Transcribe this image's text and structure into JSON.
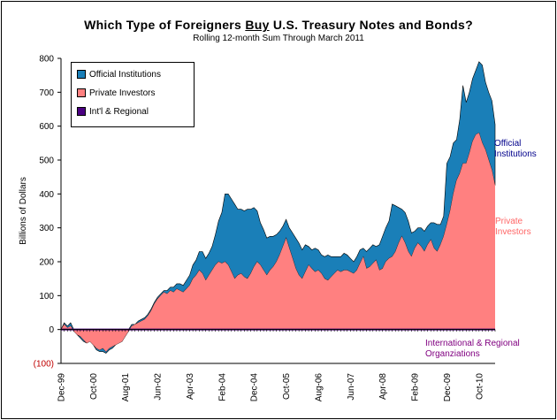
{
  "chart_data": {
    "type": "area",
    "title_parts": [
      "Which Type of Foreigners ",
      "Buy",
      " U.S. Treasury Notes and Bonds?"
    ],
    "subtitle": "Rolling 12-month Sum Through March 2011",
    "ylabel": "Billions of Dollars",
    "ylim": [
      -100,
      800
    ],
    "yticks": [
      -100,
      0,
      100,
      200,
      300,
      400,
      500,
      600,
      700,
      800
    ],
    "ytick_labels": [
      "(100)",
      "0",
      "100",
      "200",
      "300",
      "400",
      "500",
      "600",
      "700",
      "800"
    ],
    "xlim": [
      "1999-12",
      "2011-03"
    ],
    "xticks": [
      "Dec-99",
      "Oct-00",
      "Aug-01",
      "Jun-02",
      "Apr-03",
      "Feb-04",
      "Dec-04",
      "Oct-05",
      "Aug-06",
      "Jun-07",
      "Apr-08",
      "Feb-09",
      "Dec-09",
      "Oct-10"
    ],
    "legend": {
      "position": "top-left",
      "entries": [
        {
          "label": "Official Institutions",
          "color": "#1a7fb8"
        },
        {
          "label": "Private Investors",
          "color": "#ff8080"
        },
        {
          "label": "Int'l & Regional",
          "color": "#4b0082"
        }
      ]
    },
    "series": [
      {
        "name": "Private Investors",
        "color": "#ff8080",
        "points": [
          [
            "1999-12",
            0
          ],
          [
            "2000-01",
            15
          ],
          [
            "2000-02",
            5
          ],
          [
            "2000-03",
            10
          ],
          [
            "2000-04",
            -5
          ],
          [
            "2000-05",
            -15
          ],
          [
            "2000-06",
            -20
          ],
          [
            "2000-07",
            -30
          ],
          [
            "2000-08",
            -40
          ],
          [
            "2000-09",
            -35
          ],
          [
            "2000-10",
            -45
          ],
          [
            "2000-11",
            -55
          ],
          [
            "2000-12",
            -60
          ],
          [
            "2001-01",
            -55
          ],
          [
            "2001-02",
            -65
          ],
          [
            "2001-03",
            -55
          ],
          [
            "2001-04",
            -50
          ],
          [
            "2001-05",
            -45
          ],
          [
            "2001-06",
            -40
          ],
          [
            "2001-07",
            -35
          ],
          [
            "2001-08",
            -20
          ],
          [
            "2001-09",
            -5
          ],
          [
            "2001-10",
            10
          ],
          [
            "2001-11",
            15
          ],
          [
            "2001-12",
            20
          ],
          [
            "2002-01",
            25
          ],
          [
            "2002-02",
            30
          ],
          [
            "2002-03",
            40
          ],
          [
            "2002-04",
            55
          ],
          [
            "2002-05",
            75
          ],
          [
            "2002-06",
            90
          ],
          [
            "2002-07",
            100
          ],
          [
            "2002-08",
            110
          ],
          [
            "2002-09",
            105
          ],
          [
            "2002-10",
            115
          ],
          [
            "2002-11",
            110
          ],
          [
            "2002-12",
            120
          ],
          [
            "2003-01",
            115
          ],
          [
            "2003-02",
            110
          ],
          [
            "2003-03",
            120
          ],
          [
            "2003-04",
            130
          ],
          [
            "2003-05",
            150
          ],
          [
            "2003-06",
            160
          ],
          [
            "2003-07",
            175
          ],
          [
            "2003-08",
            165
          ],
          [
            "2003-09",
            145
          ],
          [
            "2003-10",
            160
          ],
          [
            "2003-11",
            175
          ],
          [
            "2003-12",
            190
          ],
          [
            "2004-01",
            200
          ],
          [
            "2004-02",
            195
          ],
          [
            "2004-03",
            200
          ],
          [
            "2004-04",
            190
          ],
          [
            "2004-05",
            170
          ],
          [
            "2004-06",
            150
          ],
          [
            "2004-07",
            160
          ],
          [
            "2004-08",
            165
          ],
          [
            "2004-09",
            155
          ],
          [
            "2004-10",
            150
          ],
          [
            "2004-11",
            165
          ],
          [
            "2004-12",
            185
          ],
          [
            "2005-01",
            200
          ],
          [
            "2005-02",
            190
          ],
          [
            "2005-03",
            175
          ],
          [
            "2005-04",
            160
          ],
          [
            "2005-05",
            175
          ],
          [
            "2005-06",
            185
          ],
          [
            "2005-07",
            200
          ],
          [
            "2005-08",
            220
          ],
          [
            "2005-09",
            245
          ],
          [
            "2005-10",
            270
          ],
          [
            "2005-11",
            240
          ],
          [
            "2005-12",
            210
          ],
          [
            "2006-01",
            180
          ],
          [
            "2006-02",
            160
          ],
          [
            "2006-03",
            150
          ],
          [
            "2006-04",
            170
          ],
          [
            "2006-05",
            190
          ],
          [
            "2006-06",
            180
          ],
          [
            "2006-07",
            170
          ],
          [
            "2006-08",
            175
          ],
          [
            "2006-09",
            165
          ],
          [
            "2006-10",
            150
          ],
          [
            "2006-11",
            145
          ],
          [
            "2006-12",
            155
          ],
          [
            "2007-01",
            165
          ],
          [
            "2007-02",
            175
          ],
          [
            "2007-03",
            170
          ],
          [
            "2007-04",
            175
          ],
          [
            "2007-05",
            175
          ],
          [
            "2007-06",
            170
          ],
          [
            "2007-07",
            165
          ],
          [
            "2007-08",
            175
          ],
          [
            "2007-09",
            195
          ],
          [
            "2007-10",
            215
          ],
          [
            "2007-11",
            180
          ],
          [
            "2007-12",
            185
          ],
          [
            "2008-01",
            195
          ],
          [
            "2008-02",
            205
          ],
          [
            "2008-03",
            175
          ],
          [
            "2008-04",
            180
          ],
          [
            "2008-05",
            200
          ],
          [
            "2008-06",
            210
          ],
          [
            "2008-07",
            215
          ],
          [
            "2008-08",
            230
          ],
          [
            "2008-09",
            255
          ],
          [
            "2008-10",
            275
          ],
          [
            "2008-11",
            255
          ],
          [
            "2008-12",
            230
          ],
          [
            "2009-01",
            215
          ],
          [
            "2009-02",
            240
          ],
          [
            "2009-03",
            255
          ],
          [
            "2009-04",
            245
          ],
          [
            "2009-05",
            230
          ],
          [
            "2009-06",
            250
          ],
          [
            "2009-07",
            265
          ],
          [
            "2009-08",
            240
          ],
          [
            "2009-09",
            230
          ],
          [
            "2009-10",
            250
          ],
          [
            "2009-11",
            275
          ],
          [
            "2009-12",
            310
          ],
          [
            "2010-01",
            350
          ],
          [
            "2010-02",
            400
          ],
          [
            "2010-03",
            440
          ],
          [
            "2010-04",
            460
          ],
          [
            "2010-05",
            490
          ],
          [
            "2010-06",
            490
          ],
          [
            "2010-07",
            520
          ],
          [
            "2010-08",
            555
          ],
          [
            "2010-09",
            575
          ],
          [
            "2010-10",
            580
          ],
          [
            "2010-11",
            550
          ],
          [
            "2010-12",
            530
          ],
          [
            "2011-01",
            500
          ],
          [
            "2011-02",
            470
          ],
          [
            "2011-03",
            425
          ]
        ]
      },
      {
        "name": "Official Institutions",
        "color": "#1a7fb8",
        "points": [
          [
            "1999-12",
            0
          ],
          [
            "2000-01",
            5
          ],
          [
            "2000-02",
            5
          ],
          [
            "2000-03",
            10
          ],
          [
            "2000-04",
            5
          ],
          [
            "2000-05",
            0
          ],
          [
            "2000-06",
            -5
          ],
          [
            "2000-07",
            -5
          ],
          [
            "2000-08",
            0
          ],
          [
            "2000-09",
            0
          ],
          [
            "2000-10",
            0
          ],
          [
            "2000-11",
            -5
          ],
          [
            "2000-12",
            -5
          ],
          [
            "2001-01",
            -10
          ],
          [
            "2001-02",
            -5
          ],
          [
            "2001-03",
            -5
          ],
          [
            "2001-04",
            -5
          ],
          [
            "2001-05",
            0
          ],
          [
            "2001-06",
            5
          ],
          [
            "2001-07",
            0
          ],
          [
            "2001-08",
            0
          ],
          [
            "2001-09",
            5
          ],
          [
            "2001-10",
            5
          ],
          [
            "2001-11",
            0
          ],
          [
            "2001-12",
            5
          ],
          [
            "2002-01",
            5
          ],
          [
            "2002-02",
            5
          ],
          [
            "2002-03",
            5
          ],
          [
            "2002-04",
            5
          ],
          [
            "2002-05",
            5
          ],
          [
            "2002-06",
            5
          ],
          [
            "2002-07",
            5
          ],
          [
            "2002-08",
            5
          ],
          [
            "2002-09",
            10
          ],
          [
            "2002-10",
            10
          ],
          [
            "2002-11",
            15
          ],
          [
            "2002-12",
            15
          ],
          [
            "2003-01",
            20
          ],
          [
            "2003-02",
            20
          ],
          [
            "2003-03",
            25
          ],
          [
            "2003-04",
            30
          ],
          [
            "2003-05",
            40
          ],
          [
            "2003-06",
            45
          ],
          [
            "2003-07",
            55
          ],
          [
            "2003-08",
            65
          ],
          [
            "2003-09",
            65
          ],
          [
            "2003-10",
            65
          ],
          [
            "2003-11",
            70
          ],
          [
            "2003-12",
            90
          ],
          [
            "2004-01",
            120
          ],
          [
            "2004-02",
            150
          ],
          [
            "2004-03",
            200
          ],
          [
            "2004-04",
            210
          ],
          [
            "2004-05",
            215
          ],
          [
            "2004-06",
            220
          ],
          [
            "2004-07",
            195
          ],
          [
            "2004-08",
            190
          ],
          [
            "2004-09",
            195
          ],
          [
            "2004-10",
            205
          ],
          [
            "2004-11",
            190
          ],
          [
            "2004-12",
            175
          ],
          [
            "2005-01",
            150
          ],
          [
            "2005-02",
            125
          ],
          [
            "2005-03",
            120
          ],
          [
            "2005-04",
            110
          ],
          [
            "2005-05",
            100
          ],
          [
            "2005-06",
            90
          ],
          [
            "2005-07",
            80
          ],
          [
            "2005-08",
            70
          ],
          [
            "2005-09",
            60
          ],
          [
            "2005-10",
            55
          ],
          [
            "2005-11",
            60
          ],
          [
            "2005-12",
            75
          ],
          [
            "2006-01",
            90
          ],
          [
            "2006-02",
            95
          ],
          [
            "2006-03",
            85
          ],
          [
            "2006-04",
            80
          ],
          [
            "2006-05",
            55
          ],
          [
            "2006-06",
            55
          ],
          [
            "2006-07",
            70
          ],
          [
            "2006-08",
            60
          ],
          [
            "2006-09",
            55
          ],
          [
            "2006-10",
            65
          ],
          [
            "2006-11",
            75
          ],
          [
            "2006-12",
            60
          ],
          [
            "2007-01",
            50
          ],
          [
            "2007-02",
            40
          ],
          [
            "2007-03",
            45
          ],
          [
            "2007-04",
            50
          ],
          [
            "2007-05",
            45
          ],
          [
            "2007-06",
            40
          ],
          [
            "2007-07",
            35
          ],
          [
            "2007-08",
            40
          ],
          [
            "2007-09",
            40
          ],
          [
            "2007-10",
            25
          ],
          [
            "2007-11",
            50
          ],
          [
            "2007-12",
            55
          ],
          [
            "2008-01",
            55
          ],
          [
            "2008-02",
            40
          ],
          [
            "2008-03",
            75
          ],
          [
            "2008-04",
            95
          ],
          [
            "2008-05",
            100
          ],
          [
            "2008-06",
            110
          ],
          [
            "2008-07",
            155
          ],
          [
            "2008-08",
            135
          ],
          [
            "2008-09",
            105
          ],
          [
            "2008-10",
            80
          ],
          [
            "2008-11",
            90
          ],
          [
            "2008-12",
            90
          ],
          [
            "2009-01",
            70
          ],
          [
            "2009-02",
            50
          ],
          [
            "2009-03",
            45
          ],
          [
            "2009-04",
            55
          ],
          [
            "2009-05",
            60
          ],
          [
            "2009-06",
            55
          ],
          [
            "2009-07",
            50
          ],
          [
            "2009-08",
            75
          ],
          [
            "2009-09",
            80
          ],
          [
            "2009-10",
            60
          ],
          [
            "2009-11",
            60
          ],
          [
            "2009-12",
            180
          ],
          [
            "2010-01",
            160
          ],
          [
            "2010-02",
            150
          ],
          [
            "2010-03",
            120
          ],
          [
            "2010-04",
            160
          ],
          [
            "2010-05",
            230
          ],
          [
            "2010-06",
            180
          ],
          [
            "2010-07",
            180
          ],
          [
            "2010-08",
            185
          ],
          [
            "2010-09",
            190
          ],
          [
            "2010-10",
            210
          ],
          [
            "2010-11",
            230
          ],
          [
            "2010-12",
            200
          ],
          [
            "2011-01",
            200
          ],
          [
            "2011-02",
            205
          ],
          [
            "2011-03",
            180
          ]
        ]
      },
      {
        "name": "Int'l & Regional",
        "color": "#4b0082",
        "points": [
          [
            "1999-12",
            0
          ],
          [
            "2011-03",
            0
          ]
        ]
      }
    ],
    "annotations": [
      {
        "text": "Official\nInstitutions",
        "color": "#00008b"
      },
      {
        "text": "Private\nInvestors",
        "color": "#ff6666"
      },
      {
        "text": "International & Regional\nOrganziations",
        "color": "#800080"
      }
    ]
  }
}
